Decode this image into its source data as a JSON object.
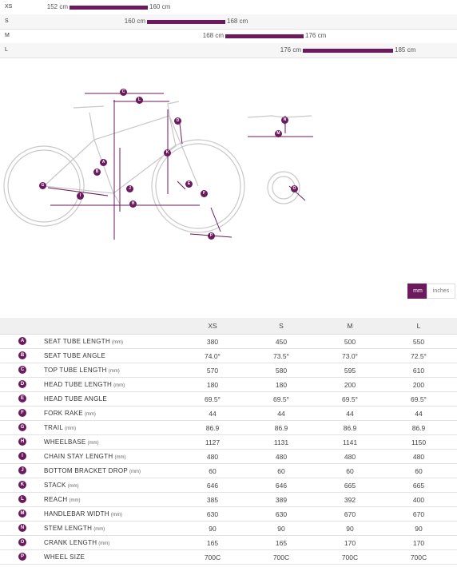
{
  "size_chart": {
    "rows": [
      {
        "size": "XS",
        "min": "152 cm",
        "max": "160 cm"
      },
      {
        "size": "S",
        "min": "160 cm",
        "max": "168 cm"
      },
      {
        "size": "M",
        "min": "168 cm",
        "max": "176 cm"
      },
      {
        "size": "L",
        "min": "176 cm",
        "max": "185 cm"
      }
    ]
  },
  "unit_toggle": {
    "options": [
      "mm",
      "inches"
    ],
    "active": "mm"
  },
  "table": {
    "header": [
      "XS",
      "S",
      "M",
      "L"
    ],
    "rows": [
      {
        "letter": "A",
        "name": "SEAT TUBE LENGTH",
        "unit": "(mm)",
        "values": [
          "380",
          "450",
          "500",
          "550"
        ]
      },
      {
        "letter": "B",
        "name": "SEAT TUBE ANGLE",
        "values": [
          "74.0°",
          "73.5°",
          "73.0°",
          "72.5°"
        ]
      },
      {
        "letter": "C",
        "name": "TOP TUBE LENGTH",
        "unit": "(mm)",
        "values": [
          "570",
          "580",
          "595",
          "610"
        ]
      },
      {
        "letter": "D",
        "name": "HEAD TUBE LENGTH",
        "unit": "(mm)",
        "values": [
          "180",
          "180",
          "200",
          "200"
        ]
      },
      {
        "letter": "E",
        "name": "HEAD TUBE ANGLE",
        "values": [
          "69.5°",
          "69.5°",
          "69.5°",
          "69.5°"
        ]
      },
      {
        "letter": "F",
        "name": "FORK RAKE",
        "unit": "(mm)",
        "values": [
          "44",
          "44",
          "44",
          "44"
        ]
      },
      {
        "letter": "G",
        "name": "TRAIL",
        "unit": "(mm)",
        "values": [
          "86.9",
          "86.9",
          "86.9",
          "86.9"
        ]
      },
      {
        "letter": "H",
        "name": "WHEELBASE",
        "unit": "(mm)",
        "values": [
          "1127",
          "1131",
          "1141",
          "1150"
        ]
      },
      {
        "letter": "I",
        "name": "CHAIN STAY LENGTH",
        "unit": "(mm)",
        "values": [
          "480",
          "480",
          "480",
          "480"
        ]
      },
      {
        "letter": "J",
        "name": "BOTTOM BRACKET DROP",
        "unit": "(mm)",
        "values": [
          "60",
          "60",
          "60",
          "60"
        ]
      },
      {
        "letter": "K",
        "name": "STACK",
        "unit": "(mm)",
        "values": [
          "646",
          "646",
          "665",
          "665"
        ]
      },
      {
        "letter": "L",
        "name": "REACH",
        "unit": "(mm)",
        "values": [
          "385",
          "389",
          "392",
          "400"
        ]
      },
      {
        "letter": "M",
        "name": "HANDLEBAR WIDTH",
        "unit": "(mm)",
        "values": [
          "630",
          "630",
          "670",
          "670"
        ]
      },
      {
        "letter": "N",
        "name": "STEM LENGTH",
        "unit": "(mm)",
        "values": [
          "90",
          "90",
          "90",
          "90"
        ]
      },
      {
        "letter": "O",
        "name": "CRANK LENGTH",
        "unit": "(mm)",
        "values": [
          "165",
          "165",
          "170",
          "170"
        ]
      },
      {
        "letter": "P",
        "name": "WHEEL SIZE",
        "values": [
          "700C",
          "700C",
          "700C",
          "700C"
        ]
      }
    ]
  }
}
